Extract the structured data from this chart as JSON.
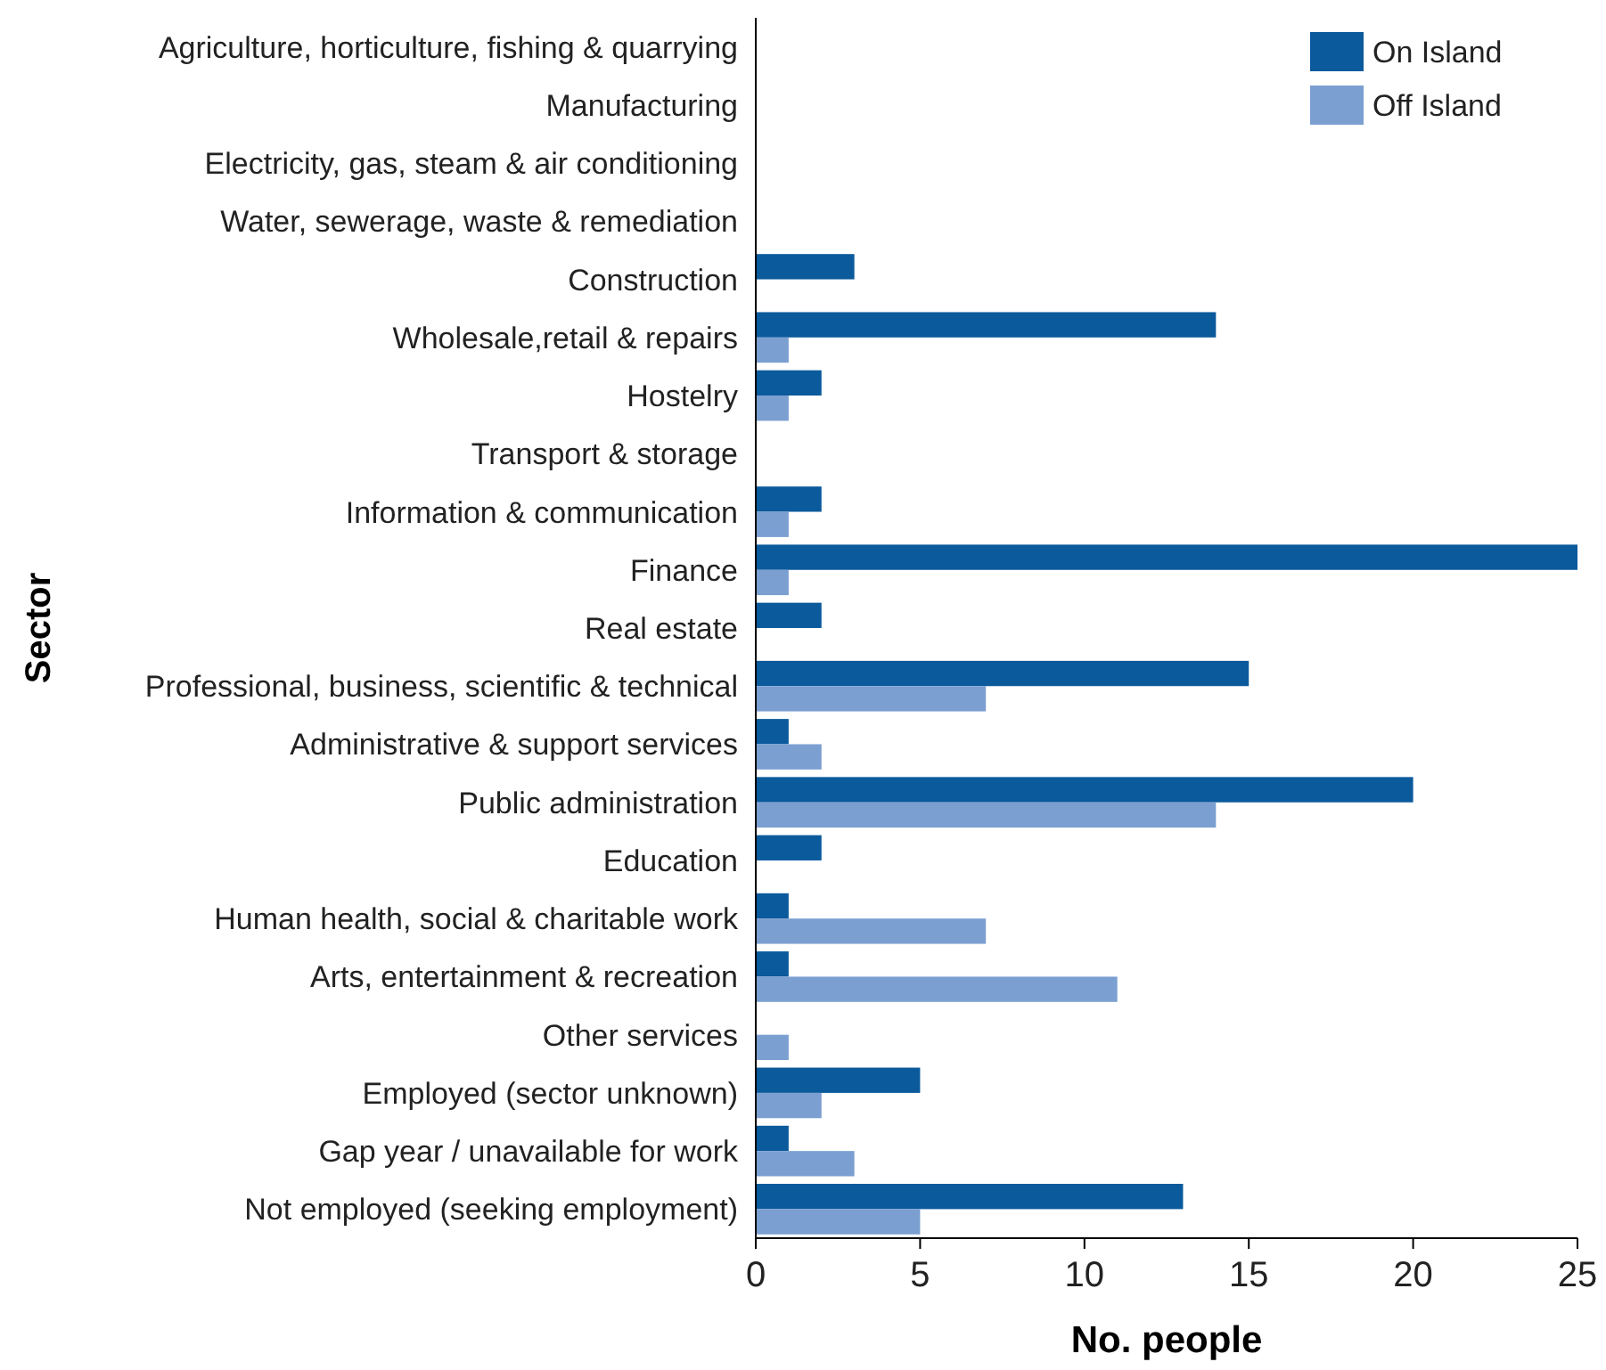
{
  "chart_data": {
    "type": "bar",
    "orientation": "horizontal",
    "ylabel": "Sector",
    "xlabel": "No. people",
    "categories": [
      "Agriculture, horticulture, fishing & quarrying",
      "Manufacturing",
      "Electricity, gas, steam & air conditioning",
      "Water, sewerage, waste & remediation",
      "Construction",
      "Wholesale,retail & repairs",
      "Hostelry",
      "Transport & storage",
      "Information & communication",
      "Finance",
      "Real estate",
      "Professional, business, scientific & technical",
      "Administrative & support services",
      "Public administration",
      "Education",
      "Human health, social & charitable work",
      "Arts, entertainment & recreation",
      "Other services",
      "Employed (sector unknown)",
      "Gap year / unavailable for work",
      "Not employed (seeking employment)"
    ],
    "series": [
      {
        "name": "On Island",
        "color": "#0b5a9c",
        "values": [
          0,
          0,
          0,
          0,
          3,
          14,
          2,
          0,
          2,
          25,
          2,
          15,
          1,
          20,
          2,
          1,
          1,
          0,
          5,
          1,
          13
        ]
      },
      {
        "name": "Off Island",
        "color": "#7b9fd1",
        "values": [
          0,
          0,
          0,
          0,
          0,
          1,
          1,
          0,
          1,
          1,
          0,
          7,
          2,
          14,
          0,
          7,
          11,
          1,
          2,
          3,
          5
        ]
      }
    ],
    "xlim": [
      0,
      25
    ],
    "xticks": [
      0,
      5,
      10,
      15,
      20,
      25
    ],
    "grid": false,
    "legend": "top right"
  }
}
